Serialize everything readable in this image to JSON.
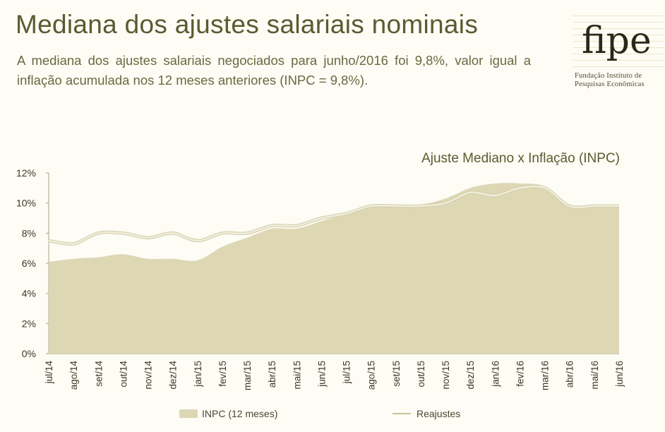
{
  "header": {
    "title": "Mediana dos ajustes salariais nominais",
    "subtitle": "A mediana dos ajustes salariais negociados para junho/2016 foi 9,8%, valor igual a inflação acumulada nos 12 meses anteriores (INPC = 9,8%)."
  },
  "logo": {
    "word": "fipe",
    "line1": "Fundação Instituto de",
    "line2": "Pesquisas Econômicas"
  },
  "colors": {
    "area_fill": "#ddd7b4",
    "line": "#efeedc",
    "axis_text": "#3a3926",
    "title_text": "#5c5a30"
  },
  "chart_data": {
    "type": "area",
    "title": "Ajuste Mediano x Inflação (INPC)",
    "xlabel": "",
    "ylabel": "",
    "ylim": [
      0,
      12
    ],
    "y_ticks": [
      "0%",
      "2%",
      "4%",
      "6%",
      "8%",
      "10%",
      "12%"
    ],
    "grid": false,
    "legend_position": "bottom",
    "categories": [
      "jul/14",
      "ago/14",
      "set/14",
      "out/14",
      "nov/14",
      "dez/14",
      "jan/15",
      "fev/15",
      "mar/15",
      "abr/15",
      "mai/15",
      "jun/15",
      "jul/15",
      "ago/15",
      "set/15",
      "out/15",
      "nov/15",
      "dez/15",
      "jan/16",
      "fev/16",
      "mar/16",
      "abr/16",
      "mai/16",
      "jun/16"
    ],
    "series": [
      {
        "name": "INPC (12 meses)",
        "kind": "area",
        "values": [
          6.1,
          6.3,
          6.4,
          6.6,
          6.3,
          6.3,
          6.2,
          7.1,
          7.7,
          8.3,
          8.3,
          8.8,
          9.3,
          9.8,
          9.9,
          9.9,
          10.3,
          11.0,
          11.3,
          11.3,
          11.1,
          9.8,
          9.8,
          9.8
        ]
      },
      {
        "name": "Reajustes",
        "kind": "line",
        "values": [
          7.5,
          7.3,
          8.0,
          8.0,
          7.7,
          8.0,
          7.5,
          8.0,
          8.0,
          8.5,
          8.5,
          9.0,
          9.3,
          9.8,
          9.8,
          9.8,
          10.0,
          10.7,
          10.5,
          11.0,
          11.0,
          9.8,
          9.8,
          9.8
        ]
      }
    ]
  }
}
